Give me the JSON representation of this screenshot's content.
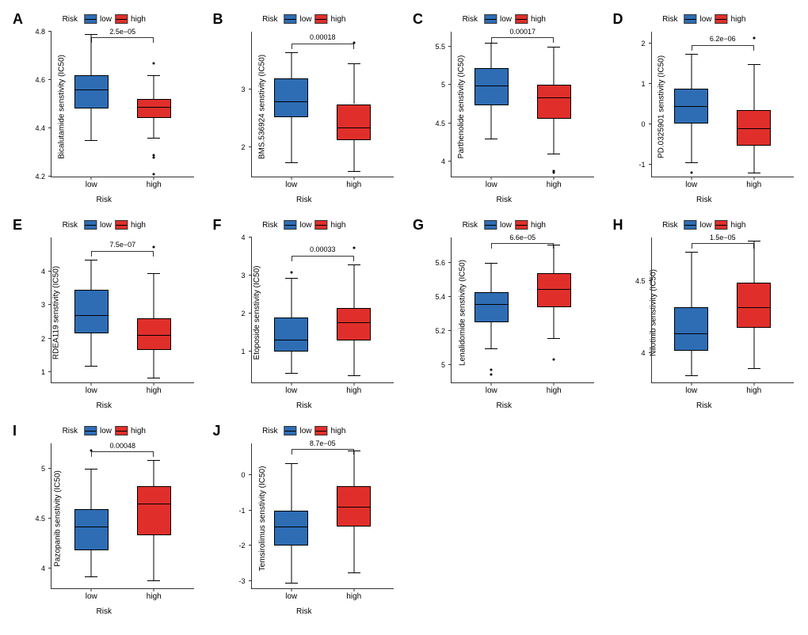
{
  "colors": {
    "low": "#2e6db4",
    "high": "#e02f2b",
    "axis": "#333333",
    "bg": "#ffffff"
  },
  "legend": {
    "title": "Risk",
    "low_label": "low",
    "high_label": "high"
  },
  "axis": {
    "xlabel": "Risk",
    "xtick_low": "low",
    "xtick_high": "high"
  },
  "font": {
    "letter_size_pt": 18,
    "label_size_pt": 10,
    "tick_size_pt": 9,
    "pval_size_pt": 9
  },
  "panels": [
    {
      "letter": "A",
      "ylabel": "Bicalutamide senstivity (IC50)",
      "ylim": [
        4.2,
        4.8
      ],
      "yticks": [
        4.2,
        4.4,
        4.6,
        4.8
      ],
      "pvalue": "2.5e−05",
      "low": {
        "q1": 4.49,
        "med": 4.56,
        "q3": 4.62,
        "wlo": 4.35,
        "whi": 4.79,
        "out": []
      },
      "high": {
        "q1": 4.45,
        "med": 4.49,
        "q3": 4.52,
        "wlo": 4.36,
        "whi": 4.62,
        "out": [
          4.68,
          4.3,
          4.29,
          4.22
        ]
      }
    },
    {
      "letter": "B",
      "ylabel": "BMS.536924 senstivity (IC50)",
      "ylim": [
        1.5,
        4.0
      ],
      "yticks": [
        2.0,
        3.0
      ],
      "pvalue": "0.00018",
      "low": {
        "q1": 2.55,
        "med": 2.8,
        "q3": 3.2,
        "wlo": 1.75,
        "whi": 3.65,
        "out": []
      },
      "high": {
        "q1": 2.15,
        "med": 2.35,
        "q3": 2.75,
        "wlo": 1.6,
        "whi": 3.45,
        "out": [
          3.85
        ]
      }
    },
    {
      "letter": "C",
      "ylabel": "Parthenolide senstivity (IC50)",
      "ylim": [
        3.8,
        5.7
      ],
      "yticks": [
        4.0,
        4.5,
        5.0,
        5.5
      ],
      "pvalue": "0.00017",
      "low": {
        "q1": 4.76,
        "med": 4.99,
        "q3": 5.22,
        "wlo": 4.3,
        "whi": 5.55,
        "out": []
      },
      "high": {
        "q1": 4.58,
        "med": 4.84,
        "q3": 5.0,
        "wlo": 4.1,
        "whi": 5.5,
        "out": [
          3.9,
          3.88
        ]
      }
    },
    {
      "letter": "D",
      "ylabel": "PD.0325901 senstivity (IC50)",
      "ylim": [
        -1.3,
        2.3
      ],
      "yticks": [
        -1,
        0,
        1,
        2
      ],
      "pvalue": "6.2e−06",
      "low": {
        "q1": 0.05,
        "med": 0.45,
        "q3": 0.88,
        "wlo": -0.95,
        "whi": 1.75,
        "out": [
          -1.15
        ]
      },
      "high": {
        "q1": -0.5,
        "med": -0.1,
        "q3": 0.35,
        "wlo": -1.2,
        "whi": 1.5,
        "out": [
          2.2
        ]
      }
    },
    {
      "letter": "E",
      "ylabel": "RDEA119 senstivity (IC50)",
      "ylim": [
        0.7,
        5.0
      ],
      "yticks": [
        1,
        2,
        3,
        4
      ],
      "pvalue": "7.5e−07",
      "low": {
        "q1": 2.2,
        "med": 2.7,
        "q3": 3.45,
        "wlo": 1.2,
        "whi": 4.35,
        "out": []
      },
      "high": {
        "q1": 1.7,
        "med": 2.1,
        "q3": 2.6,
        "wlo": 0.85,
        "whi": 3.95,
        "out": [
          4.8
        ]
      }
    },
    {
      "letter": "F",
      "ylabel": "Etoposide senstivity (IC50)",
      "ylim": [
        0.2,
        4.0
      ],
      "yticks": [
        1,
        2,
        3,
        4
      ],
      "pvalue": "0.00033",
      "low": {
        "q1": 1.05,
        "med": 1.32,
        "q3": 1.9,
        "wlo": 0.45,
        "whi": 2.95,
        "out": [
          3.15
        ]
      },
      "high": {
        "q1": 1.35,
        "med": 1.78,
        "q3": 2.15,
        "wlo": 0.38,
        "whi": 3.3,
        "out": [
          3.8
        ]
      }
    },
    {
      "letter": "G",
      "ylabel": "Lenalidomide senstivity (IC50)",
      "ylim": [
        4.9,
        5.75
      ],
      "yticks": [
        5.0,
        5.2,
        5.4,
        5.6
      ],
      "pvalue": "6.6e−05",
      "low": {
        "q1": 5.26,
        "med": 5.36,
        "q3": 5.43,
        "wlo": 5.1,
        "whi": 5.6,
        "out": [
          4.99,
          4.96
        ]
      },
      "high": {
        "q1": 5.35,
        "med": 5.45,
        "q3": 5.54,
        "wlo": 5.16,
        "whi": 5.71,
        "out": [
          5.05
        ]
      }
    },
    {
      "letter": "H",
      "ylabel": "Nilotinib senstivity (IC50)",
      "ylim": [
        3.8,
        4.8
      ],
      "yticks": [
        4.0,
        4.5
      ],
      "pvalue": "1.5e−05",
      "low": {
        "q1": 4.03,
        "med": 4.14,
        "q3": 4.32,
        "wlo": 3.85,
        "whi": 4.7,
        "out": []
      },
      "high": {
        "q1": 4.19,
        "med": 4.32,
        "q3": 4.49,
        "wlo": 3.9,
        "whi": 4.78,
        "out": []
      }
    },
    {
      "letter": "I",
      "ylabel": "Pazopanib senstivity (IC50)",
      "ylim": [
        3.8,
        5.25
      ],
      "yticks": [
        4.0,
        4.5,
        5.0
      ],
      "pvalue": "0.00048",
      "low": {
        "q1": 4.2,
        "med": 4.42,
        "q3": 4.59,
        "wlo": 3.92,
        "whi": 5.0,
        "out": [
          5.2
        ]
      },
      "high": {
        "q1": 4.35,
        "med": 4.65,
        "q3": 4.82,
        "wlo": 3.88,
        "whi": 5.08,
        "out": []
      }
    },
    {
      "letter": "J",
      "ylabel": "Temsirolimus senstivity (IC50)",
      "ylim": [
        -3.2,
        0.9
      ],
      "yticks": [
        -3,
        -2,
        -1,
        0
      ],
      "pvalue": "8.7e−05",
      "low": {
        "q1": -1.95,
        "med": -1.45,
        "q3": -1.0,
        "wlo": -3.05,
        "whi": 0.35,
        "out": []
      },
      "high": {
        "q1": -1.4,
        "med": -0.9,
        "q3": -0.3,
        "wlo": -2.75,
        "whi": 0.7,
        "out": []
      }
    }
  ]
}
